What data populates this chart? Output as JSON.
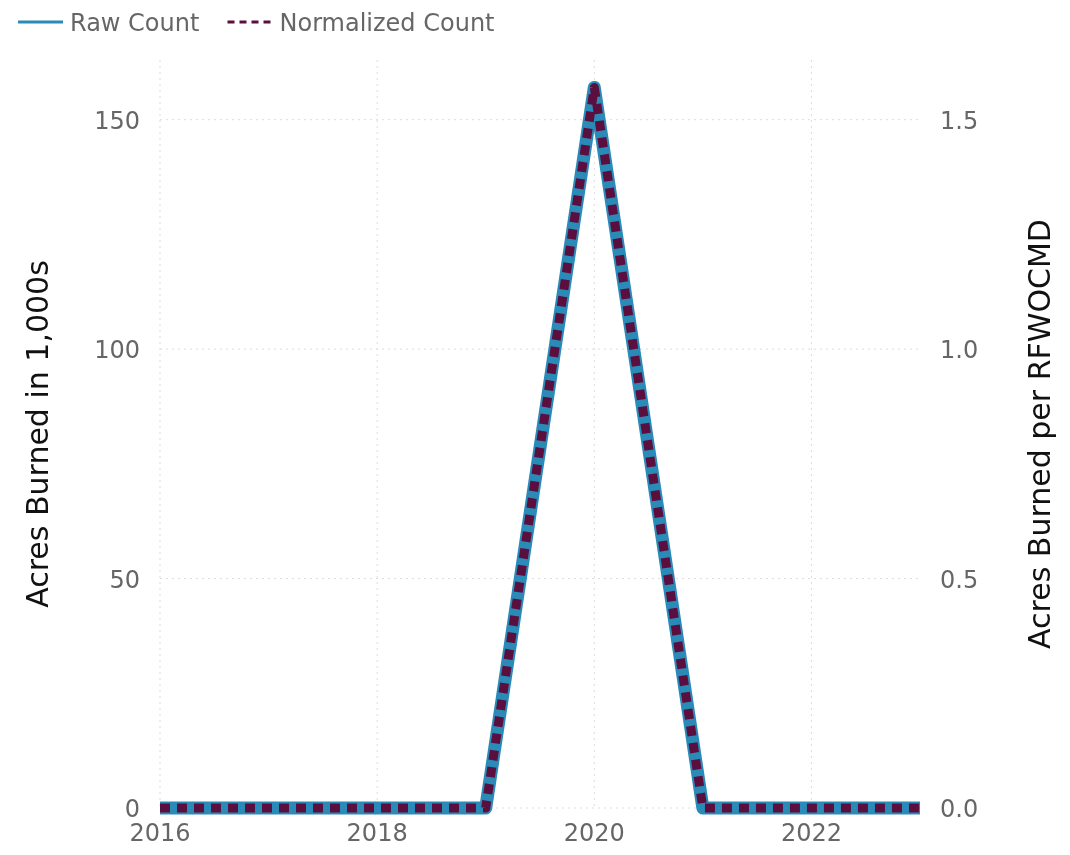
{
  "chart_data": {
    "type": "line",
    "ylabel": "Acres Burned in 1,000s",
    "y2label": "Acres Burned per RFWOCMD",
    "x": [
      2016,
      2017,
      2018,
      2019,
      2020,
      2021,
      2022,
      2023
    ],
    "series": [
      {
        "name": "Raw Count",
        "color": "#2a8bb8",
        "values": [
          0,
          0,
          0,
          0,
          157,
          0,
          0,
          0
        ],
        "line_style": "solid"
      },
      {
        "name": "Normalized Count",
        "color": "#5a0f3f",
        "values": [
          0,
          0,
          0,
          0,
          1.57,
          0,
          0,
          0
        ],
        "axis": "y2",
        "line_style": "dashed"
      }
    ],
    "xlim": [
      2016,
      2023
    ],
    "xticks": [
      2016,
      2018,
      2020,
      2022
    ],
    "ylim": [
      0,
      163
    ],
    "yticks": [
      0,
      50,
      100,
      150
    ],
    "y2lim": [
      0,
      1.63
    ],
    "y2ticks": [
      {
        "value": 0,
        "label": "0.0"
      },
      {
        "value": 0.5,
        "label": "0.5"
      },
      {
        "value": 1,
        "label": "1.0"
      },
      {
        "value": 1.5,
        "label": "1.5"
      }
    ],
    "grid": true,
    "legend": "top left",
    "marker": "none"
  }
}
